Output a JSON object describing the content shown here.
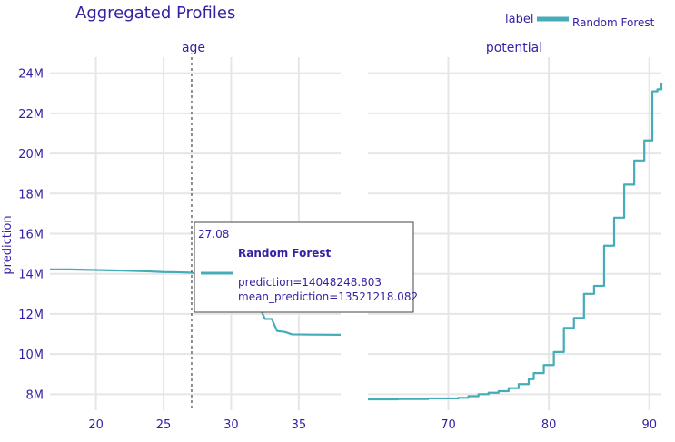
{
  "chart_data": {
    "type": "line",
    "title": "Aggregated Profiles",
    "ylabel": "prediction",
    "legend": {
      "title": "label",
      "position": "top-right",
      "entries": [
        "Random Forest"
      ]
    },
    "color": "#46acb8",
    "ylim": [
      7.2,
      24.8
    ],
    "yticks": [
      8,
      10,
      12,
      14,
      16,
      18,
      20,
      22,
      24
    ],
    "ytick_labels": [
      "8M",
      "10M",
      "12M",
      "14M",
      "16M",
      "18M",
      "20M",
      "22M",
      "24M"
    ],
    "panels": [
      {
        "facet": "age",
        "xlim": [
          16.6,
          38.1
        ],
        "xticks": [
          20,
          25,
          30,
          35
        ],
        "series": [
          {
            "name": "Random Forest",
            "x": [
              16.6,
              18,
              20,
              22,
              24,
              25,
              26,
              27,
              27.08,
              28,
              29,
              30,
              31,
              32,
              32.5,
              33,
              33.4,
              34,
              34.5,
              36,
              38.1
            ],
            "y": [
              14.22,
              14.22,
              14.19,
              14.16,
              14.12,
              14.09,
              14.08,
              14.06,
              14.05,
              13.95,
              13.8,
              13.55,
              13.1,
              12.5,
              11.75,
              11.75,
              11.15,
              11.1,
              10.98,
              10.97,
              10.96
            ]
          }
        ],
        "hover": {
          "x_label": "27.08",
          "series": "Random Forest",
          "lines": [
            "prediction=14048248.803",
            "mean_prediction=13521218.082"
          ]
        }
      },
      {
        "facet": "potential",
        "xlim": [
          62,
          91.2
        ],
        "xticks": [
          70,
          80,
          90
        ],
        "series": [
          {
            "name": "Random Forest",
            "step": true,
            "x": [
              62,
              65,
              68,
              71,
              72,
              73,
              74,
              75,
              76,
              77,
              78,
              78.5,
              79.5,
              80.5,
              81.5,
              82.5,
              83.5,
              84.5,
              85.5,
              86.5,
              87.5,
              88.5,
              89.5,
              90.3,
              90.8,
              91.2
            ],
            "y": [
              7.74,
              7.76,
              7.79,
              7.82,
              7.9,
              8.0,
              8.07,
              8.15,
              8.3,
              8.5,
              8.75,
              9.05,
              9.45,
              10.1,
              11.3,
              11.8,
              13.0,
              13.4,
              15.4,
              16.8,
              18.45,
              19.65,
              20.65,
              23.1,
              23.2,
              23.5
            ]
          }
        ]
      }
    ]
  }
}
